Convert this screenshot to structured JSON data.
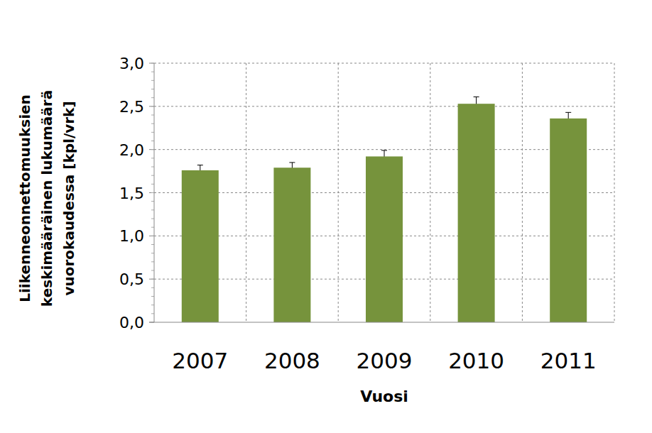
{
  "chart_data": {
    "type": "bar",
    "y_label": [
      "Liikenneonnettomuuksien",
      "keskimääräinen lukumäärä",
      "vuorokaudessa [kpl/vrk]"
    ],
    "x_label": "Vuosi",
    "categories": [
      "2007",
      "2008",
      "2009",
      "2010",
      "2011"
    ],
    "values": [
      1.76,
      1.79,
      1.92,
      2.53,
      2.36
    ],
    "errors": [
      0.06,
      0.06,
      0.07,
      0.08,
      0.07
    ],
    "color": "#76933c",
    "ylim": [
      0,
      3
    ],
    "yticks": [
      {
        "value": 0,
        "label": "0,0"
      },
      {
        "value": 0.5,
        "label": "0,5"
      },
      {
        "value": 1,
        "label": "1,0"
      },
      {
        "value": 1.5,
        "label": "1,5"
      },
      {
        "value": 2,
        "label": "2,0"
      },
      {
        "value": 2.5,
        "label": "2,5"
      },
      {
        "value": 3,
        "label": "3,0"
      }
    ],
    "grid": true
  }
}
